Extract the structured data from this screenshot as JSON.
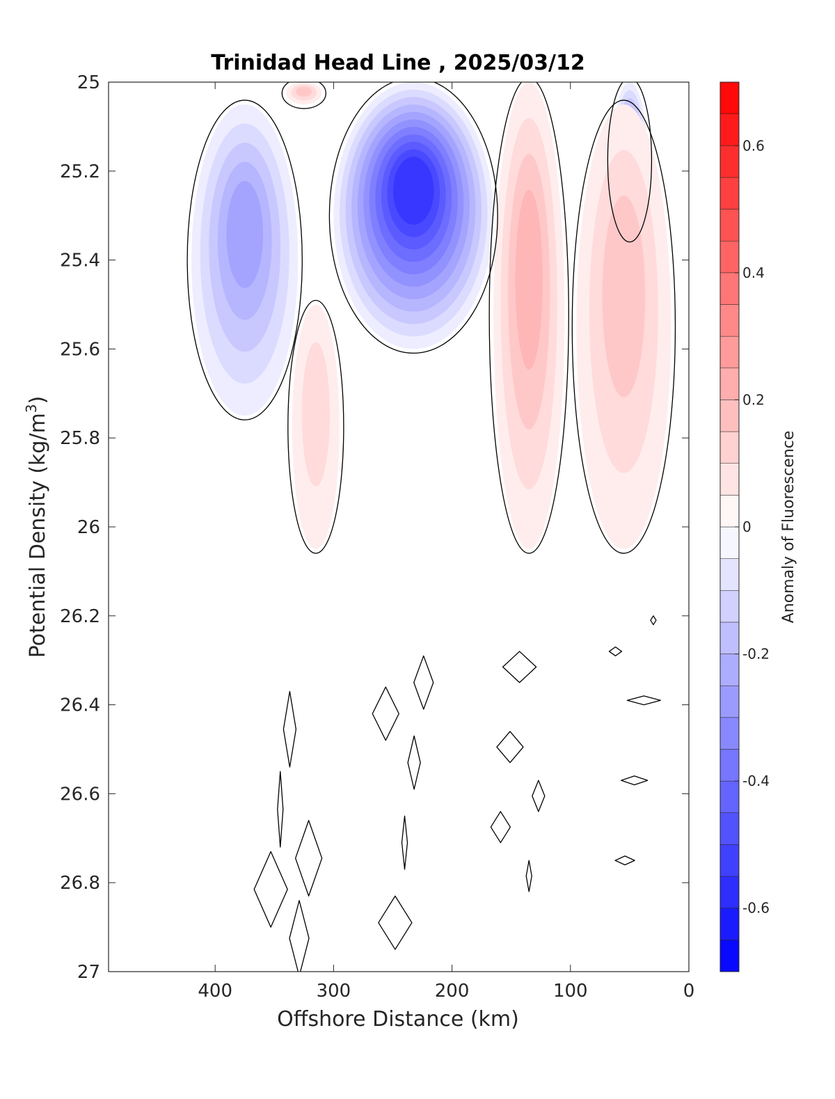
{
  "chart_data": {
    "type": "heatmap",
    "subtype": "filled-contour",
    "title": "Trinidad Head Line , 2025/03/12",
    "xlabel": "Offshore Distance (km)",
    "ylabel_main": "Potential Density (kg/m",
    "ylabel_sup": "3",
    "ylabel_close": ")",
    "x_direction": "reversed",
    "xlim": [
      0,
      490
    ],
    "ylim": [
      25,
      27
    ],
    "y_direction": "reversed",
    "xticks": [
      400,
      300,
      200,
      100,
      0
    ],
    "yticks": [
      25,
      25.2,
      25.4,
      25.6,
      25.8,
      26,
      26.2,
      26.4,
      26.6,
      26.8,
      27
    ],
    "ytick_labels": [
      "25",
      "25.2",
      "25.4",
      "25.6",
      "25.8",
      "26",
      "26.2",
      "26.4",
      "26.6",
      "26.8",
      "27"
    ],
    "colorbar": {
      "label": "Anomaly of Fluorescence",
      "clim": [
        -0.7,
        0.7
      ],
      "levels": 28,
      "ticks": [
        0.6,
        0.4,
        0.2,
        0,
        -0.2,
        -0.4,
        -0.6
      ],
      "tick_labels": [
        "0.6",
        "0.4",
        "0.2",
        "0",
        "-0.2",
        "-0.4",
        "-0.6"
      ],
      "colormap": "blue-white-red"
    },
    "anomaly_regions": [
      {
        "x_range": [
          330,
          420
        ],
        "y_range": [
          25.05,
          25.75
        ],
        "peak_value": -0.25,
        "sign": "negative"
      },
      {
        "x_range": [
          310,
          340
        ],
        "y_range": [
          25.0,
          25.05
        ],
        "peak_value": 0.15,
        "sign": "positive"
      },
      {
        "x_range": [
          165,
          300
        ],
        "y_range": [
          25.0,
          25.6
        ],
        "peak_value": -0.55,
        "sign": "negative"
      },
      {
        "x_range": [
          105,
          165
        ],
        "y_range": [
          25.0,
          26.05
        ],
        "peak_value": 0.2,
        "sign": "positive"
      },
      {
        "x_range": [
          35,
          65
        ],
        "y_range": [
          25.0,
          25.35
        ],
        "peak_value": -0.3,
        "sign": "negative"
      },
      {
        "x_range": [
          15,
          95
        ],
        "y_range": [
          25.05,
          26.05
        ],
        "peak_value": 0.15,
        "sign": "positive"
      },
      {
        "x_range": [
          295,
          335
        ],
        "y_range": [
          25.5,
          26.05
        ],
        "peak_value": 0.1,
        "sign": "positive"
      }
    ],
    "zero_contours": 20,
    "colors": {
      "positive_max": "#ff0000",
      "negative_max": "#0000ff",
      "neutral": "#ffffff",
      "contour_line": "#000000"
    }
  }
}
